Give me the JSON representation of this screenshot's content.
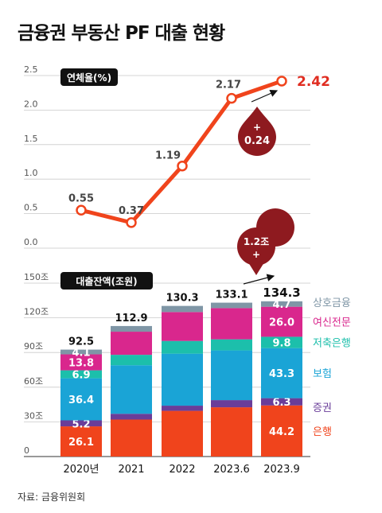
{
  "title": "금융권 부동산 PF 대출 현황",
  "source": "자료: 금융위원회",
  "chart_data": [
    {
      "type": "line",
      "label": "연체율(%)",
      "x": [
        "2020년",
        "2021",
        "2022",
        "2023.6",
        "2023.9"
      ],
      "values": [
        0.55,
        0.37,
        1.19,
        2.17,
        2.42
      ],
      "value_labels": [
        "0.55",
        "0.37",
        "1.19",
        "2.17",
        "2.42"
      ],
      "ylim": [
        0,
        2.5
      ],
      "yticks": [
        "0.0",
        "0.5",
        "1.0",
        "1.5",
        "2.0",
        "2.5"
      ],
      "annotation": {
        "sign": "+",
        "value": "0.24"
      },
      "color": "#f0441c",
      "badge_color": "#8e1a1f"
    },
    {
      "type": "bar",
      "stacked": true,
      "label": "대출잔액(조원)",
      "categories": [
        "2020년",
        "2021",
        "2022",
        "2023.6",
        "2023.9"
      ],
      "totals": [
        92.5,
        112.9,
        130.3,
        133.1,
        134.3
      ],
      "total_labels": [
        "92.5",
        "112.9",
        "130.3",
        "133.1",
        "134.3"
      ],
      "ylim": [
        0,
        150
      ],
      "yticks": [
        "0",
        "30조",
        "60조",
        "90조",
        "120조",
        "150조"
      ],
      "annotation": {
        "value": "1.2조",
        "sign": "+"
      },
      "series": [
        {
          "name": "은행",
          "color": "#f0441c",
          "values": [
            26.1,
            32.0,
            39.5,
            42.6,
            44.2
          ],
          "labels": [
            "26.1",
            "",
            "",
            "",
            "44.2"
          ]
        },
        {
          "name": "증권",
          "color": "#6a3d99",
          "values": [
            5.2,
            5.0,
            4.5,
            6.2,
            6.3
          ],
          "labels": [
            "5.2",
            "",
            "",
            "",
            "6.3"
          ]
        },
        {
          "name": "보험",
          "color": "#1aa4d6",
          "values": [
            36.4,
            42.0,
            45.0,
            43.0,
            43.3
          ],
          "labels": [
            "36.4",
            "",
            "",
            "",
            "43.3"
          ]
        },
        {
          "name": "저축은행",
          "color": "#1cbfab",
          "values": [
            6.9,
            9.0,
            11.0,
            9.6,
            9.8
          ],
          "labels": [
            "6.9",
            "",
            "",
            "",
            "9.8"
          ]
        },
        {
          "name": "여신전문",
          "color": "#d9278d",
          "values": [
            13.8,
            20.0,
            25.0,
            27.0,
            26.0
          ],
          "labels": [
            "13.8",
            "",
            "",
            "",
            "26.0"
          ]
        },
        {
          "name": "상호금융",
          "color": "#7f96a6",
          "values": [
            4.1,
            4.9,
            5.3,
            4.7,
            4.7
          ],
          "labels": [
            "4.1",
            "",
            "",
            "",
            "4.7"
          ]
        }
      ]
    }
  ]
}
